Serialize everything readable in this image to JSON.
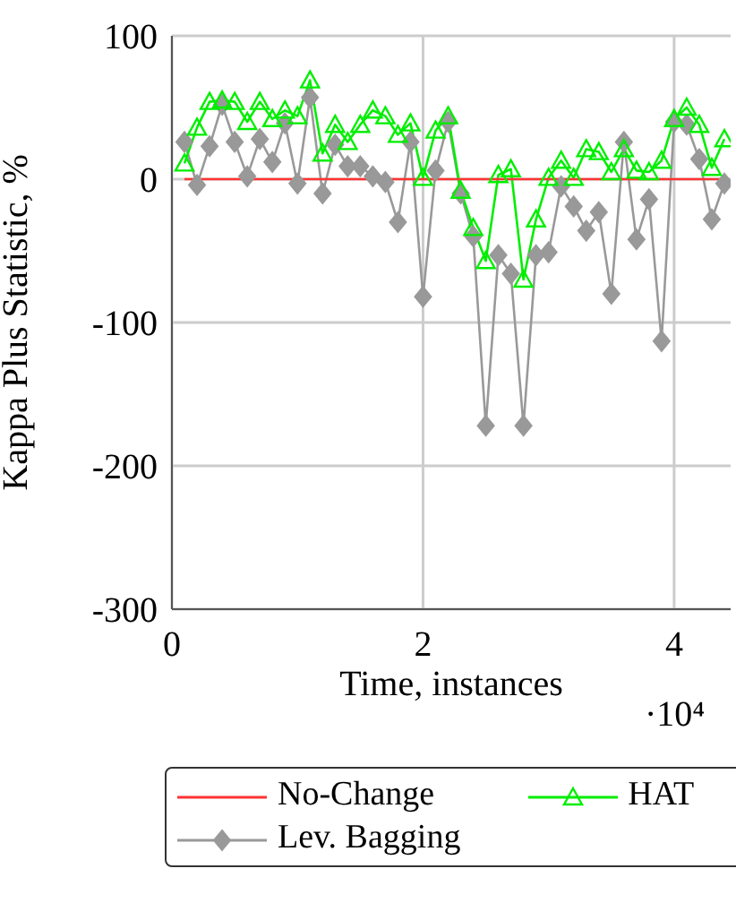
{
  "chart_data": {
    "type": "line",
    "xlabel": "Time, instances",
    "ylabel": "Kappa Plus Statistic, %",
    "annotations": [
      "·10⁴"
    ],
    "x": [
      0.1,
      0.2,
      0.3,
      0.4,
      0.5,
      0.6,
      0.7,
      0.8,
      0.9,
      1.0,
      1.1,
      1.2,
      1.3,
      1.4,
      1.5,
      1.6,
      1.7,
      1.8,
      1.9,
      2.0,
      2.1,
      2.2,
      2.3,
      2.4,
      2.5,
      2.6,
      2.7,
      2.8,
      2.9,
      3.0,
      3.1,
      3.2,
      3.3,
      3.4,
      3.5,
      3.6,
      3.7,
      3.8,
      3.9,
      4.0,
      4.1,
      4.2,
      4.3,
      4.4
    ],
    "series": [
      {
        "name": "No-Change",
        "color": "#ff3333",
        "marker": "none",
        "values": [
          0,
          0,
          0,
          0,
          0,
          0,
          0,
          0,
          0,
          0,
          0,
          0,
          0,
          0,
          0,
          0,
          0,
          0,
          0,
          0,
          0,
          0,
          0,
          0,
          0,
          0,
          0,
          0,
          0,
          0,
          0,
          0,
          0,
          0,
          0,
          0,
          0,
          0,
          0,
          0,
          0,
          0,
          0,
          0
        ]
      },
      {
        "name": "HAT",
        "color": "#00ee00",
        "marker": "triangle",
        "values": [
          11,
          36,
          54,
          55,
          54,
          40,
          54,
          42,
          48,
          44,
          69,
          18,
          38,
          26,
          38,
          48,
          44,
          31,
          39,
          1,
          34,
          44,
          -8,
          -34,
          -57,
          3,
          7,
          -70,
          -28,
          1,
          13,
          1,
          21,
          19,
          5,
          21,
          6,
          5,
          13,
          42,
          50,
          38,
          8,
          28
        ]
      },
      {
        "name": "Lev. Bagging",
        "color": "#999999",
        "marker": "diamond",
        "values": [
          26,
          -4,
          23,
          52,
          26,
          2,
          28,
          12,
          39,
          -3,
          57,
          -10,
          24,
          9,
          9,
          2,
          -2,
          -30,
          26,
          -82,
          6,
          40,
          -10,
          -40,
          -172,
          -53,
          -66,
          -172,
          -53,
          -51,
          -5,
          -19,
          -36,
          -23,
          -80,
          26,
          -42,
          -14,
          -113,
          40,
          38,
          14,
          -28,
          -3
        ]
      }
    ],
    "xlim": [
      0,
      4.45
    ],
    "xticks": [
      0,
      2,
      4
    ],
    "ylim": [
      -300,
      100
    ],
    "yticks": [
      -300,
      -200,
      -100,
      0,
      100
    ],
    "grid": true,
    "legend": "bottom",
    "line_style": "solid"
  }
}
